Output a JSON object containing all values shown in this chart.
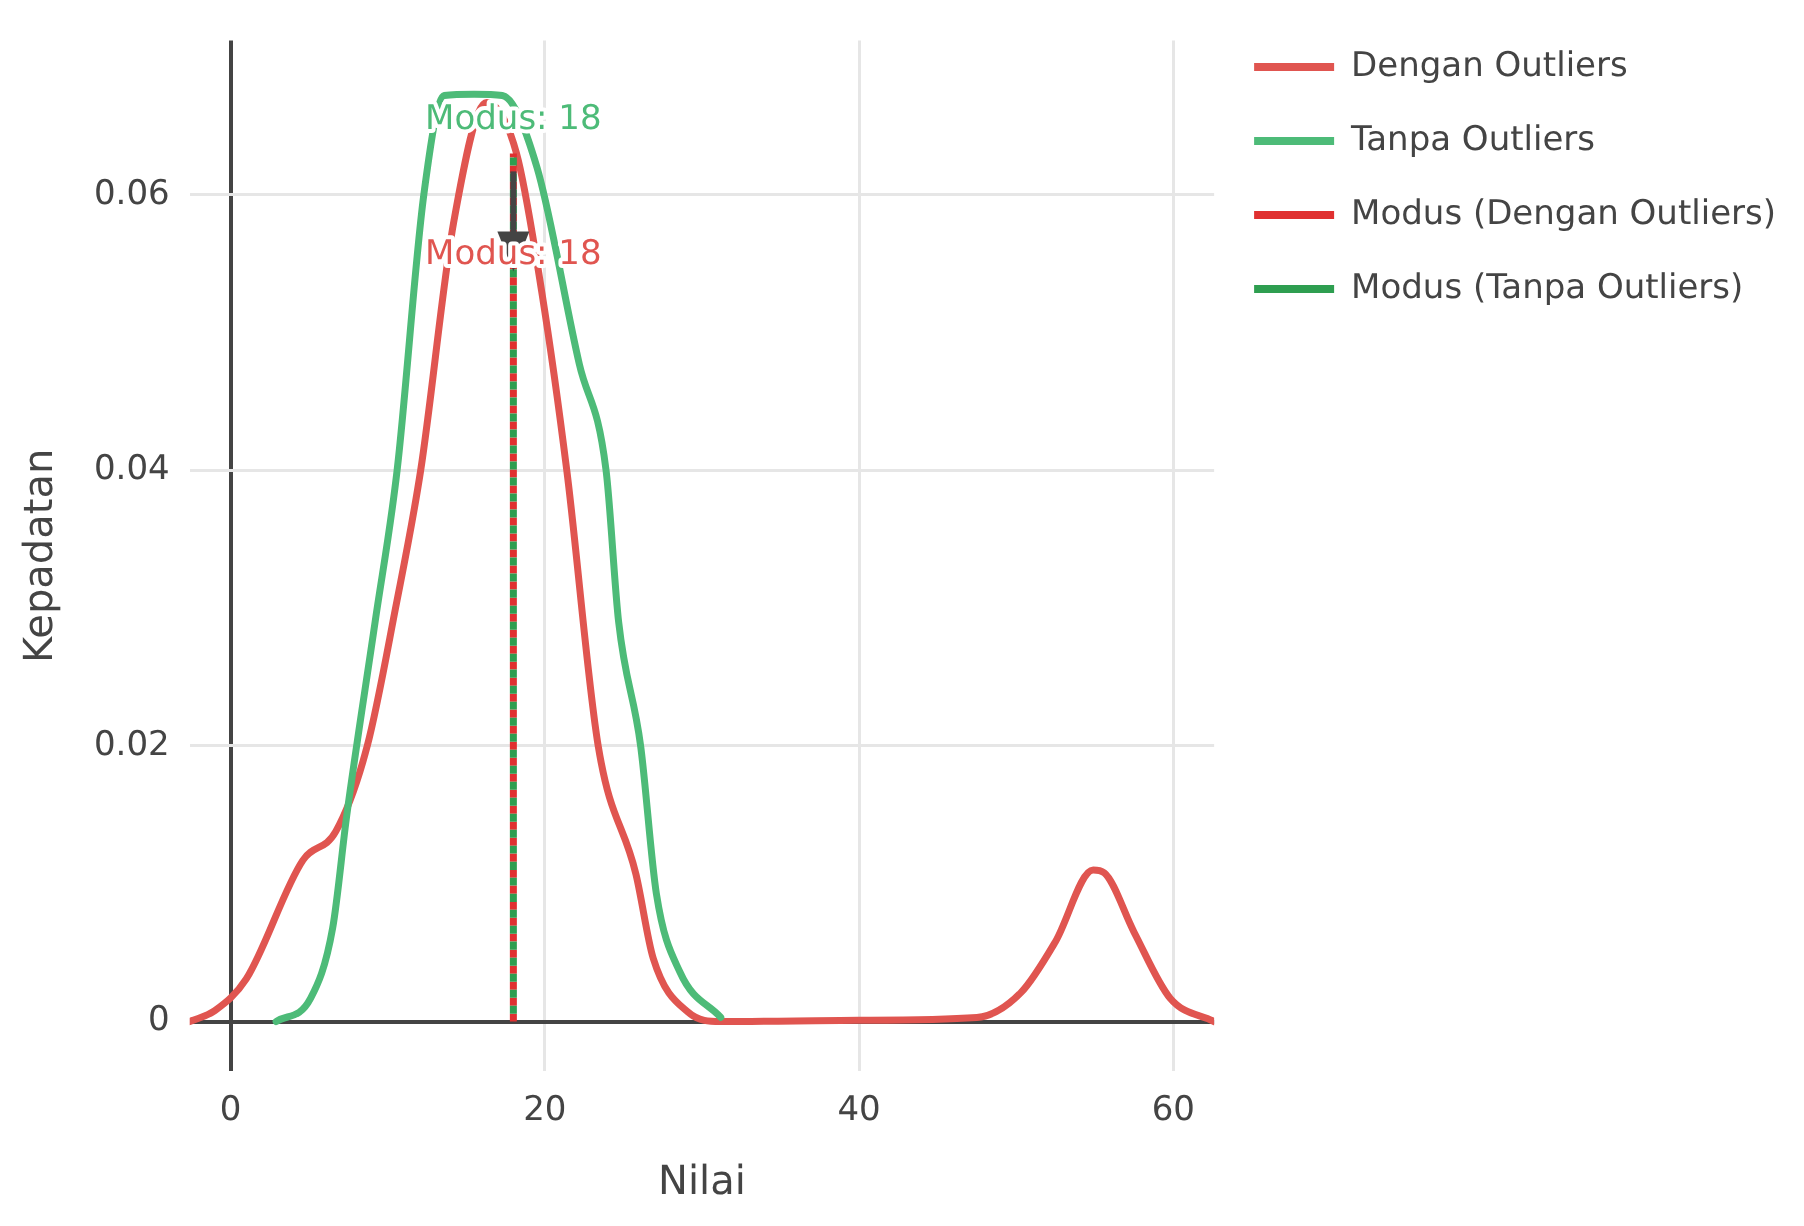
{
  "chart_data": {
    "type": "line",
    "xlabel": "Nilai",
    "ylabel": "Kepadatan",
    "xlim": [
      -2.6,
      62.6
    ],
    "ylim": [
      -0.0036,
      0.0712
    ],
    "xticks": [
      0,
      20,
      40,
      60
    ],
    "yticks": [
      0,
      0.02,
      0.04,
      0.06
    ],
    "grid": true,
    "legend": "top right",
    "marker": "none",
    "series": [
      {
        "name": "Dengan Outliers",
        "color": "#e05550",
        "x": [
          -2.6,
          -1,
          1.0,
          4.6,
          6.7,
          8.7,
          10.5,
          12.1,
          14.2,
          16.3,
          18.2,
          19.8,
          21.4,
          23.4,
          25.8,
          26.9,
          29.1,
          31.2,
          40,
          47.5,
          50.3,
          52.5,
          54.9,
          55.6,
          57.5,
          59.8,
          62.6
        ],
        "values": [
          0,
          0.0008,
          0.0031,
          0.0117,
          0.0138,
          0.02,
          0.03,
          0.04,
          0.058,
          0.0667,
          0.063,
          0.053,
          0.04,
          0.02,
          0.0107,
          0.0046,
          0.0007,
          0,
          0.0001,
          0.0003,
          0.0021,
          0.0058,
          0.011,
          0.0108,
          0.0065,
          0.0017,
          0
        ]
      },
      {
        "name": "Tanpa Outliers",
        "color": "#4dbb78",
        "x": [
          2.9,
          5.1,
          6.5,
          7.4,
          9.2,
          10.6,
          12.3,
          13.6,
          15.5,
          17.3,
          19.5,
          22.2,
          23.9,
          24.7,
          26.1,
          27.1,
          28.6,
          31.2
        ],
        "values": [
          0,
          0.0017,
          0.0068,
          0.015,
          0.029,
          0.04,
          0.06,
          0.0672,
          0.0673,
          0.0672,
          0.062,
          0.0477,
          0.04,
          0.029,
          0.02,
          0.0093,
          0.0036,
          0.0003
        ]
      },
      {
        "name": "Modus (Dengan Outliers)",
        "color": "#e03030",
        "x": [
          18,
          18
        ],
        "values": [
          0,
          0.063
        ],
        "line_style": "dotted"
      },
      {
        "name": "Modus (Tanpa Outliers)",
        "color": "#2e9e50",
        "x": [
          18,
          18
        ],
        "values": [
          0,
          0.063
        ],
        "line_style": "dotted"
      }
    ],
    "annotations": [
      {
        "text": "Modus: 18",
        "x": 18,
        "y": 0.0654
      },
      {
        "text": "Modus: 18",
        "x": 18,
        "y": 0.0556
      }
    ]
  }
}
